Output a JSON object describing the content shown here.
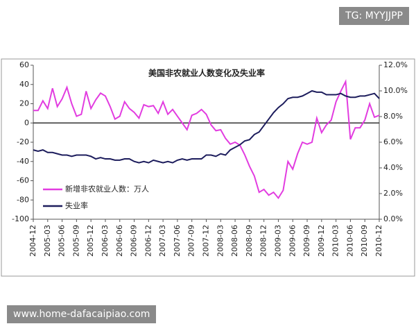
{
  "chart_data": {
    "type": "line",
    "title": "美国非农就业人数变化及失业率",
    "categories": [
      "2004-12",
      null,
      null,
      "2005-03",
      null,
      null,
      "2005-06",
      null,
      null,
      "2005-09",
      null,
      null,
      "2005-12",
      null,
      null,
      "2006-03",
      null,
      null,
      "2006-06",
      null,
      null,
      "2006-09",
      null,
      null,
      "2006-12",
      null,
      null,
      "2007-03",
      null,
      null,
      "2007-06",
      null,
      null,
      "2007-09",
      null,
      null,
      "2007-12",
      null,
      null,
      "2008-03",
      null,
      null,
      "2008-06",
      null,
      null,
      "2008-09",
      null,
      null,
      "2008-12",
      null,
      null,
      "2009-03",
      null,
      null,
      "2009-06",
      null,
      null,
      "2009-09",
      null,
      null,
      "2009-12",
      null,
      null,
      "2010-03",
      null,
      null,
      "2010-06",
      null,
      null,
      "2010-09",
      null,
      null,
      "2010-12"
    ],
    "series": [
      {
        "name": "新增非农就业人数：万人",
        "color": "#e23ce0",
        "values": [
          13,
          13,
          23,
          15,
          36,
          17,
          25,
          37,
          20,
          7,
          9,
          33,
          15,
          24,
          31,
          28,
          17,
          4,
          7,
          22,
          15,
          11,
          5,
          19,
          17,
          18,
          10,
          22,
          9,
          14,
          7,
          0,
          -7,
          8,
          10,
          14,
          9,
          -2,
          -8,
          -7,
          -16,
          -22,
          -20,
          -23,
          -33,
          -45,
          -55,
          -72,
          -69,
          -75,
          -72,
          -78,
          -70,
          -40,
          -48,
          -32,
          -20,
          -22,
          -20,
          5,
          -10,
          -2,
          3,
          22,
          33,
          43,
          -17,
          -5,
          -5,
          3,
          20,
          6,
          8
        ]
      },
      {
        "name": "失业率",
        "color": "#1c1c5c",
        "axis": "y2",
        "values": [
          5.4,
          5.3,
          5.4,
          5.2,
          5.2,
          5.1,
          5.0,
          5.0,
          4.9,
          5.0,
          5.0,
          5.0,
          4.9,
          4.7,
          4.8,
          4.7,
          4.7,
          4.6,
          4.6,
          4.7,
          4.7,
          4.5,
          4.4,
          4.5,
          4.4,
          4.6,
          4.5,
          4.4,
          4.5,
          4.4,
          4.6,
          4.7,
          4.6,
          4.7,
          4.7,
          4.7,
          5.0,
          5.0,
          4.9,
          5.1,
          5.0,
          5.4,
          5.6,
          5.8,
          6.1,
          6.2,
          6.6,
          6.8,
          7.3,
          7.8,
          8.3,
          8.7,
          9.0,
          9.4,
          9.5,
          9.5,
          9.6,
          9.8,
          10.0,
          9.9,
          9.9,
          9.7,
          9.7,
          9.7,
          9.8,
          9.6,
          9.5,
          9.5,
          9.6,
          9.6,
          9.7,
          9.8,
          9.4
        ]
      }
    ],
    "ylim": [
      -100,
      60
    ],
    "yticks": [
      -100,
      -80,
      -60,
      -40,
      -20,
      0,
      20,
      40,
      60
    ],
    "y2lim": [
      0,
      12
    ],
    "y2ticks": [
      {
        "value": 0,
        "label": "0.0%"
      },
      {
        "value": 2,
        "label": "2.0%"
      },
      {
        "value": 4,
        "label": "4.0%"
      },
      {
        "value": 6,
        "label": "6.0%"
      },
      {
        "value": 8,
        "label": "8.0%"
      },
      {
        "value": 10,
        "label": "10.0%"
      },
      {
        "value": 12,
        "label": "12.0%"
      }
    ],
    "legend": "lower left",
    "grid": false
  },
  "overlays": {
    "tag": "TG: MYYJJPP",
    "site": "www.home-dafacaipiao.com"
  }
}
